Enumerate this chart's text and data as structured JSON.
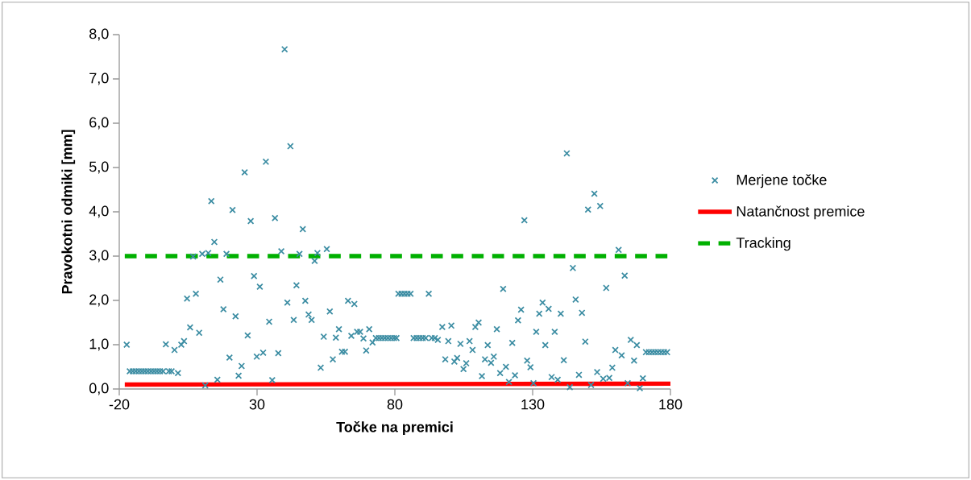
{
  "chart_data": {
    "type": "scatter",
    "xlabel": "Točke na premici",
    "ylabel": "Pravokotni odmiki [mm]",
    "xlim": [
      -20,
      180
    ],
    "xticks": [
      -20,
      30,
      80,
      130,
      180
    ],
    "ylim": [
      0,
      8
    ],
    "yticks": [
      {
        "value": 0,
        "label": "0,0"
      },
      {
        "value": 1,
        "label": "1,0"
      },
      {
        "value": 2,
        "label": "2,0"
      },
      {
        "value": 3,
        "label": "3,0"
      },
      {
        "value": 4,
        "label": "4,0"
      },
      {
        "value": 5,
        "label": "5,0"
      },
      {
        "value": 6,
        "label": "6,0"
      },
      {
        "value": 7,
        "label": "7,0"
      },
      {
        "value": 8,
        "label": "8,0"
      }
    ],
    "grid": false,
    "legend": "right",
    "series": [
      {
        "name": "Merjene točke",
        "color": "#3c8da3",
        "marker": "cross",
        "x": [
          -17.3,
          -16.2,
          -15.1,
          -14.0,
          -12.9,
          -11.8,
          -10.7,
          -9.6,
          -8.5,
          -7.4,
          -6.3,
          -5.2,
          -4.1,
          -3.1,
          -2.0,
          -1.0,
          0.05,
          1.3,
          2.5,
          3.5,
          4.6,
          5.7,
          6.8,
          7.8,
          9.0,
          10.1,
          11.2,
          12.3,
          13.4,
          14.5,
          15.6,
          16.7,
          17.8,
          18.9,
          20.0,
          21.1,
          22.2,
          23.3,
          24.4,
          25.5,
          26.6,
          27.7,
          28.9,
          29.9,
          31.0,
          32.2,
          33.2,
          34.4,
          35.5,
          36.5,
          37.7,
          38.8,
          40.0,
          41.0,
          42.1,
          43.3,
          44.3,
          45.4,
          46.6,
          47.5,
          48.7,
          49.8,
          50.9,
          51.9,
          53.1,
          54.2,
          55.3,
          56.4,
          57.5,
          58.6,
          59.7,
          60.8,
          61.9,
          63.0,
          64.2,
          65.3,
          66.3,
          67.4,
          68.6,
          69.6,
          70.7,
          71.9,
          73.1,
          74.2,
          75.3,
          76.4,
          77.5,
          78.6,
          79.7,
          80.6,
          81.3,
          82.4,
          83.5,
          84.6,
          85.7,
          86.8,
          87.9,
          89.0,
          90.1,
          91.2,
          92.3,
          93.4,
          94.5,
          95.6,
          97.2,
          98.3,
          99.4,
          100.5,
          101.6,
          102.6,
          103.8,
          104.9,
          105.9,
          107.1,
          108.2,
          109.2,
          110.4,
          111.6,
          112.7,
          113.7,
          114.9,
          115.9,
          117.0,
          118.2,
          119.3,
          120.3,
          121.4,
          122.6,
          123.6,
          124.7,
          125.8,
          127.0,
          128.0,
          129.2,
          130.3,
          131.3,
          132.4,
          133.6,
          134.6,
          135.8,
          136.9,
          138.0,
          139.1,
          140.2,
          141.3,
          142.4,
          143.5,
          144.6,
          145.6,
          146.8,
          147.9,
          149.1,
          150.1,
          151.2,
          152.4,
          153.4,
          154.5,
          155.6,
          156.7,
          157.8,
          158.9,
          160.0,
          161.2,
          162.3,
          163.4,
          164.5,
          165.6,
          166.8,
          167.8,
          168.9,
          170.0,
          171.1,
          172.2,
          173.3,
          174.4,
          175.5,
          176.6,
          177.7,
          178.8
        ],
        "values": [
          1.0,
          0.4,
          0.4,
          0.4,
          0.4,
          0.4,
          0.4,
          0.4,
          0.4,
          0.4,
          0.4,
          0.4,
          0.4,
          1.01,
          0.4,
          0.4,
          0.88,
          0.36,
          1.0,
          1.08,
          2.04,
          1.39,
          2.99,
          2.15,
          1.27,
          3.05,
          0.08,
          3.07,
          4.24,
          3.32,
          0.21,
          2.47,
          1.8,
          3.05,
          0.71,
          4.04,
          1.64,
          0.3,
          0.52,
          4.89,
          1.21,
          3.79,
          2.55,
          0.73,
          2.31,
          0.82,
          5.13,
          1.52,
          0.2,
          3.86,
          0.81,
          3.11,
          7.67,
          1.95,
          5.48,
          1.56,
          2.34,
          3.05,
          3.61,
          1.99,
          1.68,
          1.56,
          2.89,
          3.07,
          0.48,
          1.18,
          3.16,
          1.75,
          0.67,
          1.16,
          1.35,
          0.84,
          0.84,
          1.99,
          1.2,
          1.92,
          1.29,
          1.29,
          1.14,
          0.87,
          1.35,
          1.05,
          1.15,
          1.15,
          1.15,
          1.15,
          1.15,
          1.15,
          1.15,
          1.15,
          2.15,
          2.15,
          2.15,
          2.15,
          2.15,
          1.15,
          1.15,
          1.15,
          1.15,
          1.15,
          2.15,
          1.15,
          1.15,
          1.11,
          1.4,
          0.67,
          1.08,
          1.43,
          0.62,
          0.7,
          1.02,
          0.45,
          0.58,
          1.08,
          0.88,
          1.4,
          1.5,
          0.29,
          0.67,
          0.99,
          0.59,
          0.73,
          1.35,
          0.36,
          2.26,
          0.5,
          0.16,
          1.04,
          0.31,
          1.55,
          1.79,
          3.81,
          0.64,
          0.49,
          0.13,
          1.29,
          1.7,
          1.95,
          0.99,
          1.81,
          0.27,
          1.29,
          0.21,
          1.7,
          0.65,
          5.32,
          0.04,
          2.73,
          2.02,
          0.32,
          1.72,
          1.07,
          4.05,
          0.09,
          4.41,
          0.38,
          4.13,
          0.23,
          2.28,
          0.25,
          0.48,
          0.88,
          3.14,
          0.76,
          2.56,
          0.13,
          1.11,
          0.64,
          0.99,
          0.02,
          0.24,
          0.83,
          0.83,
          0.83,
          0.83,
          0.83,
          0.83,
          0.83,
          0.83
        ]
      },
      {
        "type": "line",
        "name": "Natančnost premice",
        "color": "#ff0000",
        "marker": "none",
        "line_style": "solid",
        "x": [
          -18,
          180
        ],
        "values": [
          0.1,
          0.12
        ]
      },
      {
        "type": "line",
        "name": "Tracking",
        "color": "#00b000",
        "marker": "none",
        "line_style": "dashed",
        "x": [
          -18,
          180
        ],
        "values": [
          3,
          3
        ]
      }
    ]
  }
}
